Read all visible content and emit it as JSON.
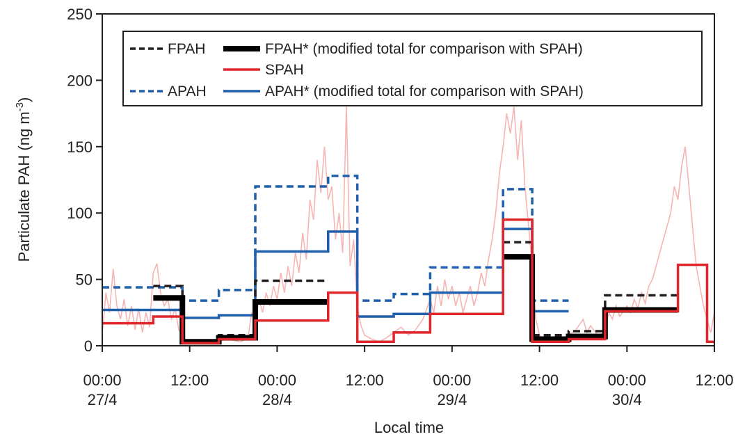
{
  "chart_data": {
    "type": "line",
    "title": "",
    "xlabel": "Local time",
    "ylabel": "Particulate PAH (ng m",
    "ylabel_superscript": "-3",
    "ylabel_suffix": ")",
    "xlim": [
      0,
      84
    ],
    "ylim": [
      0,
      250
    ],
    "x_ticks": [
      {
        "x": 0,
        "line1": "00:00",
        "line2": "27/4"
      },
      {
        "x": 12,
        "line1": "12:00",
        "line2": ""
      },
      {
        "x": 24,
        "line1": "00:00",
        "line2": "28/4"
      },
      {
        "x": 36,
        "line1": "12:00",
        "line2": ""
      },
      {
        "x": 48,
        "line1": "00:00",
        "line2": "29/4"
      },
      {
        "x": 60,
        "line1": "12:00",
        "line2": ""
      },
      {
        "x": 72,
        "line1": "00:00",
        "line2": "30/4"
      },
      {
        "x": 84,
        "line1": "12:00",
        "line2": ""
      }
    ],
    "y_ticks": [
      0,
      50,
      100,
      150,
      200,
      250
    ],
    "grid": false,
    "legend_position": "top",
    "legend": [
      {
        "label": "FPAH",
        "series": "FPAH"
      },
      {
        "label": "FPAH* (modified total for comparison with SPAH)",
        "series": "FPAH*"
      },
      {
        "label": "SPAH",
        "series": "SPAH"
      },
      {
        "label": "APAH",
        "series": "APAH"
      },
      {
        "label": "APAH* (modified total for comparison with SPAH)",
        "series": "APAH*"
      }
    ],
    "series": [
      {
        "name": "FPAH",
        "color": "#231f20",
        "style": "dashed",
        "segments": [
          {
            "x0": 7,
            "x1": 11,
            "y": 45
          },
          {
            "x0": 11,
            "x1": 16,
            "y": 4
          },
          {
            "x0": 16,
            "x1": 21,
            "y": 8
          },
          {
            "x0": 21,
            "x1": 31,
            "y": 49
          },
          {
            "x0": 55,
            "x1": 59,
            "y": 78
          },
          {
            "x0": 59,
            "x1": 64,
            "y": 8
          },
          {
            "x0": 64,
            "x1": 69,
            "y": 11
          },
          {
            "x0": 69,
            "x1": 79,
            "y": 38
          }
        ]
      },
      {
        "name": "FPAH*",
        "color": "#000000",
        "style": "thick",
        "segments": [
          {
            "x0": 7,
            "x1": 11,
            "y": 36
          },
          {
            "x0": 11,
            "x1": 16,
            "y": 3
          },
          {
            "x0": 16,
            "x1": 21,
            "y": 6
          },
          {
            "x0": 21,
            "x1": 31,
            "y": 33
          },
          {
            "x0": 55,
            "x1": 59,
            "y": 67
          },
          {
            "x0": 59,
            "x1": 64,
            "y": 5
          },
          {
            "x0": 64,
            "x1": 69,
            "y": 7
          },
          {
            "x0": 69,
            "x1": 79,
            "y": 27
          }
        ]
      },
      {
        "name": "APAH",
        "color": "#1f5fac",
        "style": "dashed",
        "segments": [
          {
            "x0": 0,
            "x1": 11,
            "y": 44
          },
          {
            "x0": 11,
            "x1": 16,
            "y": 34
          },
          {
            "x0": 16,
            "x1": 21,
            "y": 42
          },
          {
            "x0": 21,
            "x1": 31,
            "y": 120
          },
          {
            "x0": 31,
            "x1": 35,
            "y": 128
          },
          {
            "x0": 35,
            "x1": 40,
            "y": 34
          },
          {
            "x0": 40,
            "x1": 45,
            "y": 39
          },
          {
            "x0": 45,
            "x1": 55,
            "y": 59
          },
          {
            "x0": 55,
            "x1": 59,
            "y": 118
          },
          {
            "x0": 59,
            "x1": 64,
            "y": 34
          }
        ]
      },
      {
        "name": "APAH*",
        "color": "#1f5fac",
        "style": "solid",
        "segments": [
          {
            "x0": 0,
            "x1": 11,
            "y": 27
          },
          {
            "x0": 11,
            "x1": 16,
            "y": 21
          },
          {
            "x0": 16,
            "x1": 21,
            "y": 23
          },
          {
            "x0": 21,
            "x1": 31,
            "y": 71
          },
          {
            "x0": 31,
            "x1": 35,
            "y": 86
          },
          {
            "x0": 35,
            "x1": 40,
            "y": 22
          },
          {
            "x0": 40,
            "x1": 45,
            "y": 24
          },
          {
            "x0": 45,
            "x1": 55,
            "y": 40
          },
          {
            "x0": 55,
            "x1": 59,
            "y": 88
          },
          {
            "x0": 59,
            "x1": 64,
            "y": 26
          }
        ]
      },
      {
        "name": "SPAH",
        "color": "#e0262a",
        "style": "solid",
        "segments": [
          {
            "x0": 0,
            "x1": 7,
            "y": 17
          },
          {
            "x0": 7,
            "x1": 11,
            "y": 22
          },
          {
            "x0": 11,
            "x1": 16,
            "y": 2
          },
          {
            "x0": 16,
            "x1": 21,
            "y": 5
          },
          {
            "x0": 21,
            "x1": 31,
            "y": 19
          },
          {
            "x0": 31,
            "x1": 35,
            "y": 40
          },
          {
            "x0": 35,
            "x1": 40,
            "y": 3
          },
          {
            "x0": 40,
            "x1": 45,
            "y": 10
          },
          {
            "x0": 45,
            "x1": 55,
            "y": 24
          },
          {
            "x0": 55,
            "x1": 59,
            "y": 95
          },
          {
            "x0": 59,
            "x1": 64,
            "y": 3
          },
          {
            "x0": 64,
            "x1": 69,
            "y": 5
          },
          {
            "x0": 69,
            "x1": 79,
            "y": 26
          },
          {
            "x0": 79,
            "x1": 83,
            "y": 61
          },
          {
            "x0": 83,
            "x1": 84,
            "y": 3
          }
        ]
      },
      {
        "name": "high-resolution trace",
        "color": "#f5b5b3",
        "style": "thin",
        "points": [
          [
            0,
            8
          ],
          [
            0.5,
            40
          ],
          [
            1,
            25
          ],
          [
            1.5,
            58
          ],
          [
            2,
            30
          ],
          [
            2.5,
            20
          ],
          [
            3,
            35
          ],
          [
            3.5,
            15
          ],
          [
            4,
            30
          ],
          [
            4.5,
            12
          ],
          [
            5,
            28
          ],
          [
            5.5,
            10
          ],
          [
            6,
            25
          ],
          [
            6.5,
            14
          ],
          [
            7,
            55
          ],
          [
            7.5,
            62
          ],
          [
            8,
            40
          ],
          [
            8.5,
            30
          ],
          [
            9,
            35
          ],
          [
            9.5,
            20
          ],
          [
            10,
            28
          ],
          [
            10.5,
            12
          ],
          [
            11,
            8
          ],
          [
            11.5,
            4
          ],
          [
            12,
            2
          ],
          [
            13,
            3
          ],
          [
            14,
            2
          ],
          [
            15,
            4
          ],
          [
            16,
            3
          ],
          [
            17,
            5
          ],
          [
            18,
            4
          ],
          [
            19,
            3
          ],
          [
            20,
            6
          ],
          [
            20.5,
            25
          ],
          [
            21,
            15
          ],
          [
            21.5,
            35
          ],
          [
            22,
            25
          ],
          [
            22.5,
            40
          ],
          [
            23,
            30
          ],
          [
            23.5,
            45
          ],
          [
            24,
            35
          ],
          [
            24.5,
            55
          ],
          [
            25,
            40
          ],
          [
            25.5,
            60
          ],
          [
            26,
            45
          ],
          [
            26.5,
            70
          ],
          [
            27,
            55
          ],
          [
            27.5,
            85
          ],
          [
            28,
            65
          ],
          [
            28.5,
            110
          ],
          [
            29,
            95
          ],
          [
            29.5,
            140
          ],
          [
            30,
            115
          ],
          [
            30.5,
            150
          ],
          [
            31,
            110
          ],
          [
            31.5,
            120
          ],
          [
            32,
            80
          ],
          [
            32.5,
            100
          ],
          [
            33,
            70
          ],
          [
            33.5,
            180
          ],
          [
            34,
            60
          ],
          [
            34.5,
            80
          ],
          [
            35,
            30
          ],
          [
            35.5,
            15
          ],
          [
            36,
            8
          ],
          [
            37,
            5
          ],
          [
            38,
            3
          ],
          [
            39,
            6
          ],
          [
            40,
            10
          ],
          [
            41,
            14
          ],
          [
            42,
            8
          ],
          [
            43,
            12
          ],
          [
            44,
            20
          ],
          [
            45,
            35
          ],
          [
            45.5,
            25
          ],
          [
            46,
            45
          ],
          [
            46.5,
            30
          ],
          [
            47,
            50
          ],
          [
            47.5,
            35
          ],
          [
            48,
            45
          ],
          [
            48.5,
            30
          ],
          [
            49,
            40
          ],
          [
            49.5,
            25
          ],
          [
            50,
            35
          ],
          [
            50.5,
            45
          ],
          [
            51,
            30
          ],
          [
            51.5,
            40
          ],
          [
            52,
            55
          ],
          [
            52.5,
            45
          ],
          [
            53,
            65
          ],
          [
            53.5,
            80
          ],
          [
            54,
            100
          ],
          [
            54.5,
            130
          ],
          [
            55,
            150
          ],
          [
            55.5,
            175
          ],
          [
            56,
            160
          ],
          [
            56.5,
            180
          ],
          [
            57,
            140
          ],
          [
            57.5,
            170
          ],
          [
            58,
            120
          ],
          [
            58.5,
            90
          ],
          [
            59,
            60
          ],
          [
            59.5,
            20
          ],
          [
            60,
            8
          ],
          [
            61,
            4
          ],
          [
            62,
            3
          ],
          [
            63,
            5
          ],
          [
            64,
            8
          ],
          [
            65,
            12
          ],
          [
            66,
            20
          ],
          [
            66.5,
            10
          ],
          [
            67,
            15
          ],
          [
            68,
            8
          ],
          [
            69,
            10
          ],
          [
            69.5,
            25
          ],
          [
            70,
            20
          ],
          [
            70.5,
            30
          ],
          [
            71,
            22
          ],
          [
            72,
            30
          ],
          [
            72.5,
            25
          ],
          [
            73,
            35
          ],
          [
            73.5,
            28
          ],
          [
            74,
            40
          ],
          [
            74.5,
            32
          ],
          [
            75,
            45
          ],
          [
            75.5,
            50
          ],
          [
            76,
            60
          ],
          [
            76.5,
            70
          ],
          [
            77,
            80
          ],
          [
            77.5,
            90
          ],
          [
            78,
            100
          ],
          [
            78.5,
            120
          ],
          [
            79,
            110
          ],
          [
            79.5,
            135
          ],
          [
            80,
            150
          ],
          [
            80.5,
            120
          ],
          [
            81,
            90
          ],
          [
            81.5,
            60
          ],
          [
            82,
            45
          ],
          [
            82.5,
            30
          ],
          [
            83,
            20
          ],
          [
            83.5,
            10
          ],
          [
            84,
            25
          ]
        ]
      }
    ]
  }
}
